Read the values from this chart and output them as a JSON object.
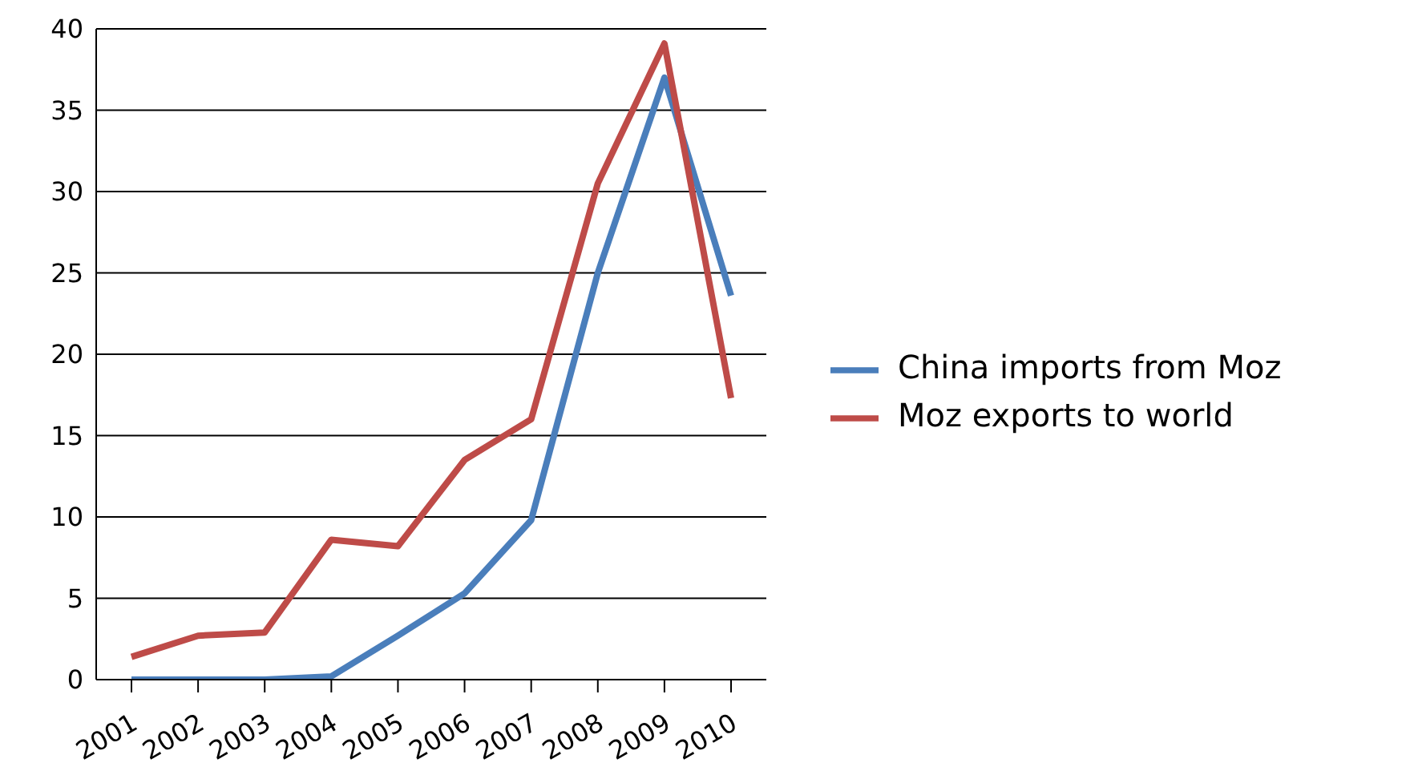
{
  "chart_data": {
    "type": "line",
    "categories": [
      "2001",
      "2002",
      "2003",
      "2004",
      "2005",
      "2006",
      "2007",
      "2008",
      "2009",
      "2010"
    ],
    "series": [
      {
        "name": "China imports from Moz",
        "color": "#4a7ebb",
        "values": [
          0,
          0,
          0,
          0.2,
          2.7,
          5.3,
          9.8,
          25,
          37,
          23.6
        ]
      },
      {
        "name": "Moz exports to world",
        "color": "#be4b48",
        "values": [
          1.4,
          2.7,
          2.9,
          8.6,
          8.2,
          13.5,
          16,
          30.5,
          39.1,
          17.3
        ]
      }
    ],
    "ylim": [
      0,
      40
    ],
    "yticks": [
      0,
      5,
      10,
      15,
      20,
      25,
      30,
      35,
      40
    ],
    "grid": "y",
    "legend": "right",
    "marker": "none",
    "line_style": "solid"
  }
}
